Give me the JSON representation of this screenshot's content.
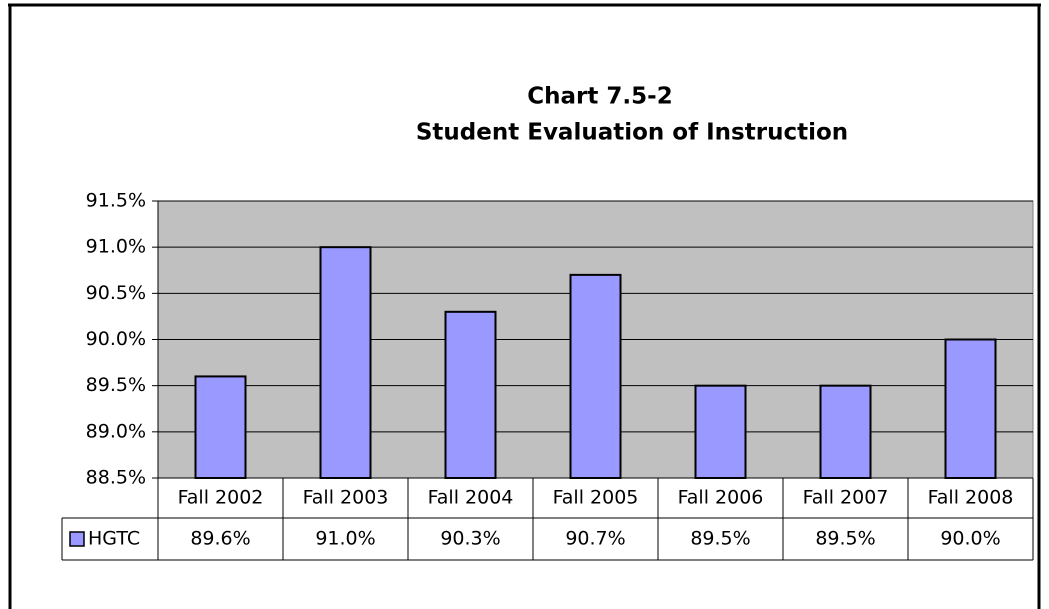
{
  "chart_data": {
    "type": "bar",
    "title": "Chart 7.5-2",
    "subtitle": "Student Evaluation of Instruction",
    "categories": [
      "Fall 2002",
      "Fall 2003",
      "Fall 2004",
      "Fall 2005",
      "Fall 2006",
      "Fall 2007",
      "Fall 2008"
    ],
    "series": [
      {
        "name": "HGTC",
        "color": "#9999ff",
        "values": [
          89.6,
          91.0,
          90.3,
          90.7,
          89.5,
          89.5,
          90.0
        ],
        "value_labels": [
          "89.6%",
          "91.0%",
          "90.3%",
          "90.7%",
          "89.5%",
          "89.5%",
          "90.0%"
        ]
      }
    ],
    "ylim": [
      88.5,
      91.5
    ],
    "yticks": [
      {
        "value": 88.5,
        "label": "88.5%"
      },
      {
        "value": 89.0,
        "label": "89.0%"
      },
      {
        "value": 89.5,
        "label": "89.5%"
      },
      {
        "value": 90.0,
        "label": "90.0%"
      },
      {
        "value": 90.5,
        "label": "90.5%"
      },
      {
        "value": 91.0,
        "label": "91.0%"
      },
      {
        "value": 91.5,
        "label": "91.5%"
      }
    ],
    "grid": true,
    "plot_background": "#c0c0c0"
  }
}
